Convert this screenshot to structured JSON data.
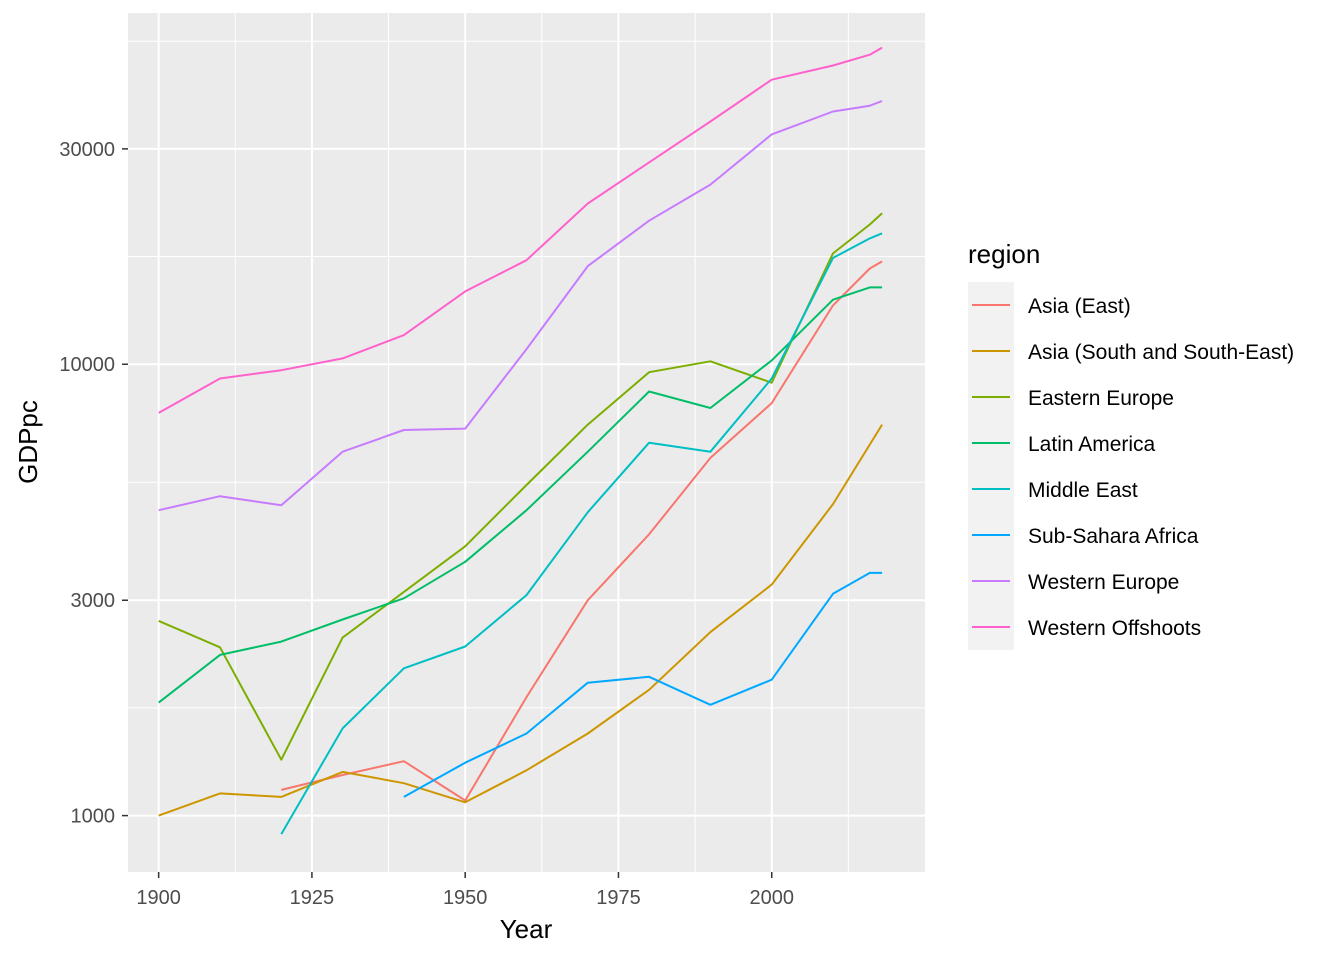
{
  "chart_data": {
    "type": "line",
    "xlabel": "Year",
    "ylabel": "GDPpc",
    "y_scale": "log10",
    "xlim": [
      1895,
      2025
    ],
    "ylim": [
      750,
      60000
    ],
    "x_ticks": [
      1900,
      1925,
      1950,
      1975,
      2000
    ],
    "x_tick_labels": [
      "1900",
      "1925",
      "1950",
      "1975",
      "2000"
    ],
    "y_ticks": [
      1000,
      3000,
      10000,
      30000
    ],
    "y_tick_labels": [
      "1000",
      "3000",
      "10000",
      "30000"
    ],
    "grid": true,
    "legend": {
      "title": "region",
      "position": "right"
    },
    "series": [
      {
        "name": "Asia (East)",
        "color": "#F8766D",
        "points": [
          [
            1920,
            1140
          ],
          [
            1930,
            1230
          ],
          [
            1940,
            1320
          ],
          [
            1950,
            1080
          ],
          [
            1960,
            1830
          ],
          [
            1970,
            3000
          ],
          [
            1980,
            4200
          ],
          [
            1990,
            6200
          ],
          [
            2000,
            8200
          ],
          [
            2010,
            13500
          ],
          [
            2016,
            16300
          ],
          [
            2018,
            16900
          ]
        ]
      },
      {
        "name": "Asia (South and South-East)",
        "color": "#CD9600",
        "points": [
          [
            1900,
            1000
          ],
          [
            1910,
            1120
          ],
          [
            1920,
            1100
          ],
          [
            1930,
            1250
          ],
          [
            1940,
            1180
          ],
          [
            1950,
            1070
          ],
          [
            1960,
            1260
          ],
          [
            1970,
            1520
          ],
          [
            1980,
            1900
          ],
          [
            1990,
            2550
          ],
          [
            2000,
            3250
          ],
          [
            2010,
            4900
          ],
          [
            2018,
            7350
          ]
        ]
      },
      {
        "name": "Eastern Europe",
        "color": "#7CAE00",
        "points": [
          [
            1900,
            2700
          ],
          [
            1910,
            2360
          ],
          [
            1920,
            1330
          ],
          [
            1930,
            2480
          ],
          [
            1940,
            3130
          ],
          [
            1950,
            3950
          ],
          [
            1960,
            5400
          ],
          [
            1970,
            7350
          ],
          [
            1980,
            9600
          ],
          [
            1990,
            10150
          ],
          [
            2000,
            9100
          ],
          [
            2010,
            17600
          ],
          [
            2016,
            20400
          ],
          [
            2018,
            21600
          ]
        ]
      },
      {
        "name": "Latin America",
        "color": "#00BE67",
        "points": [
          [
            1900,
            1780
          ],
          [
            1910,
            2270
          ],
          [
            1920,
            2430
          ],
          [
            1930,
            2720
          ],
          [
            1940,
            3030
          ],
          [
            1950,
            3650
          ],
          [
            1960,
            4750
          ],
          [
            1970,
            6400
          ],
          [
            1980,
            8700
          ],
          [
            1990,
            8000
          ],
          [
            2000,
            10200
          ],
          [
            2010,
            13900
          ],
          [
            2016,
            14800
          ],
          [
            2018,
            14800
          ]
        ]
      },
      {
        "name": "Middle East",
        "color": "#00BFC4",
        "points": [
          [
            1920,
            910
          ],
          [
            1930,
            1560
          ],
          [
            1940,
            2120
          ],
          [
            1950,
            2370
          ],
          [
            1960,
            3080
          ],
          [
            1970,
            4700
          ],
          [
            1980,
            6700
          ],
          [
            1990,
            6400
          ],
          [
            2000,
            9300
          ],
          [
            2010,
            17200
          ],
          [
            2016,
            19000
          ],
          [
            2018,
            19500
          ]
        ]
      },
      {
        "name": "Sub-Sahara Africa",
        "color": "#00A9FF",
        "points": [
          [
            1940,
            1100
          ],
          [
            1950,
            1310
          ],
          [
            1960,
            1520
          ],
          [
            1970,
            1970
          ],
          [
            1980,
            2030
          ],
          [
            1990,
            1760
          ],
          [
            2000,
            2000
          ],
          [
            2010,
            3100
          ],
          [
            2016,
            3450
          ],
          [
            2018,
            3450
          ]
        ]
      },
      {
        "name": "Western Europe",
        "color": "#C77CFF",
        "points": [
          [
            1900,
            4750
          ],
          [
            1910,
            5100
          ],
          [
            1920,
            4870
          ],
          [
            1930,
            6400
          ],
          [
            1940,
            7150
          ],
          [
            1950,
            7200
          ],
          [
            1960,
            10800
          ],
          [
            1970,
            16500
          ],
          [
            1980,
            20800
          ],
          [
            1990,
            25000
          ],
          [
            2000,
            32300
          ],
          [
            2010,
            36300
          ],
          [
            2016,
            37400
          ],
          [
            2018,
            38300
          ]
        ]
      },
      {
        "name": "Western Offshoots",
        "color": "#FF61CC",
        "points": [
          [
            1900,
            7800
          ],
          [
            1910,
            9300
          ],
          [
            1920,
            9700
          ],
          [
            1930,
            10300
          ],
          [
            1940,
            11600
          ],
          [
            1950,
            14500
          ],
          [
            1960,
            17000
          ],
          [
            1970,
            22700
          ],
          [
            1980,
            28000
          ],
          [
            1990,
            34500
          ],
          [
            2000,
            42700
          ],
          [
            2010,
            45900
          ],
          [
            2016,
            48500
          ],
          [
            2018,
            50300
          ]
        ]
      }
    ]
  }
}
